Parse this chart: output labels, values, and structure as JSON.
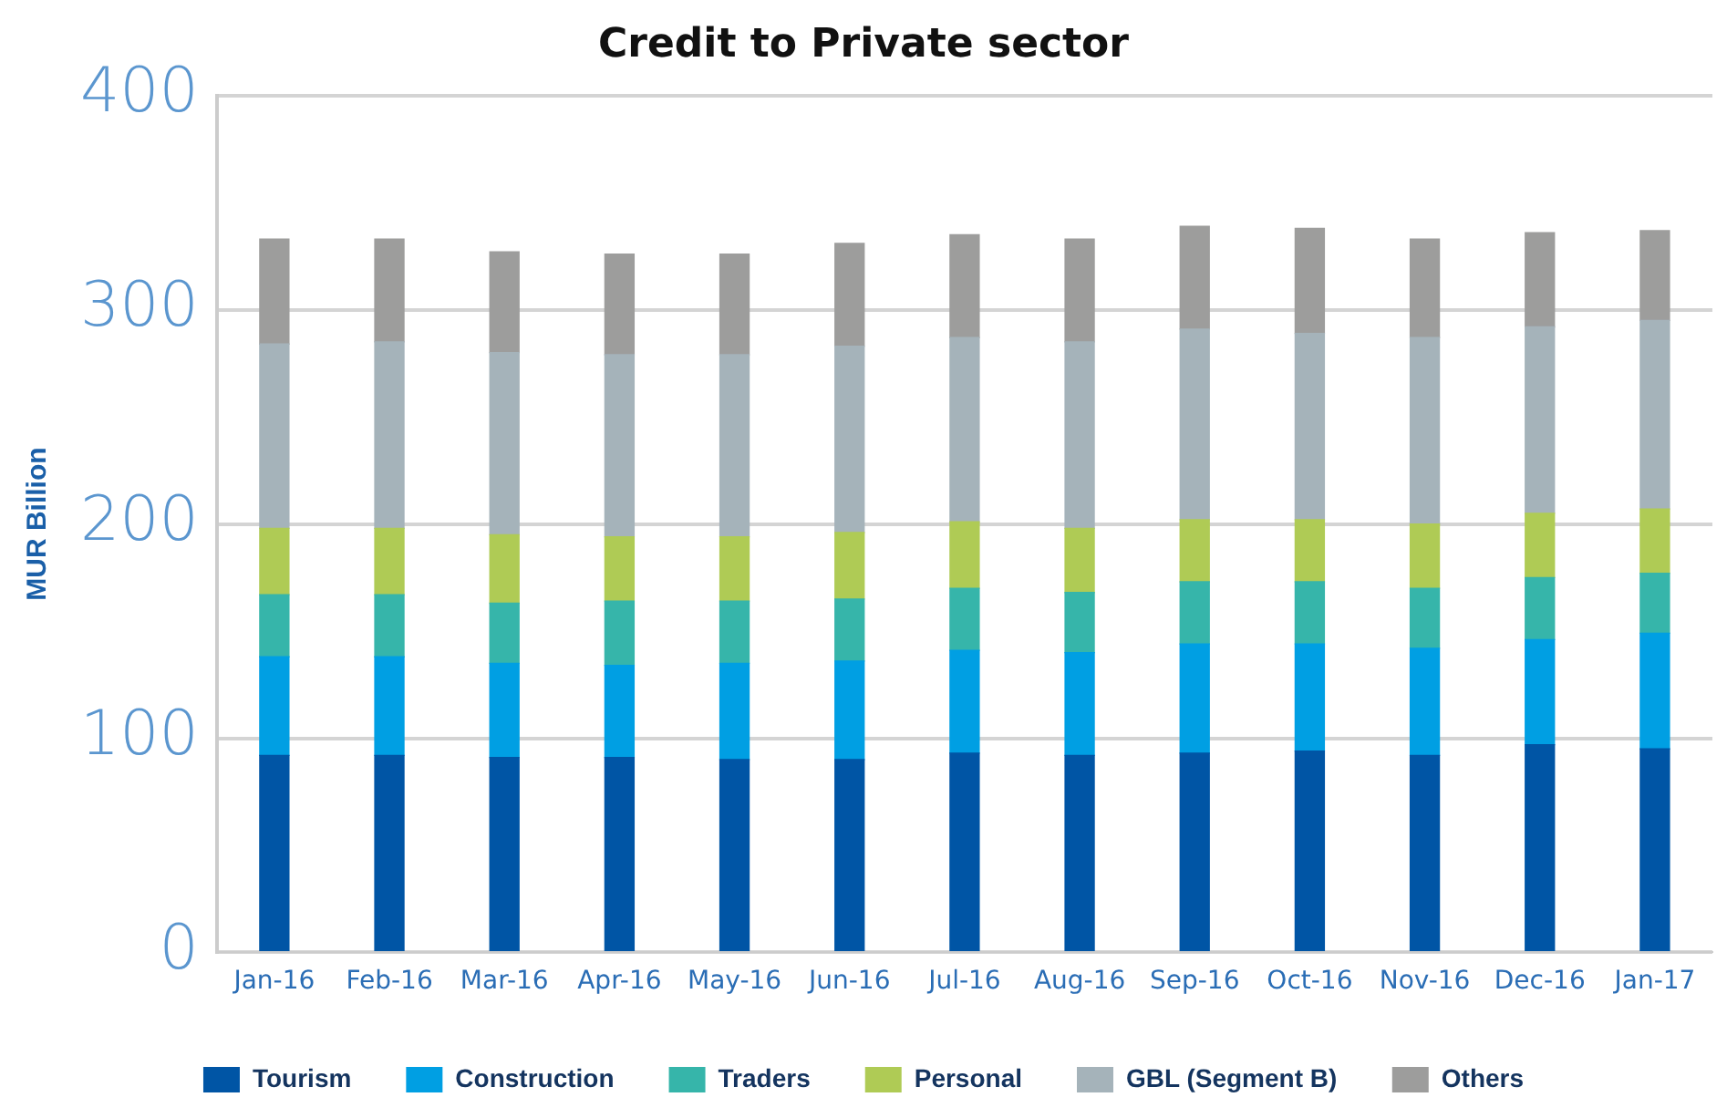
{
  "chart_data": {
    "type": "bar",
    "title": "Credit to Private sector",
    "ylabel": "MUR Billion",
    "categories": [
      "Jan-16",
      "Feb-16",
      "Mar-16",
      "Apr-16",
      "May-16",
      "Jun-16",
      "Jul-16",
      "Aug-16",
      "Sep-16",
      "Oct-16",
      "Nov-16",
      "Dec-16",
      "Jan-17"
    ],
    "stacked": true,
    "ylim": [
      0,
      400
    ],
    "yticks": [
      0,
      100,
      200,
      300,
      400
    ],
    "grid": "y",
    "legend": "bottom",
    "series": [
      {
        "name": "Tourism",
        "color": "#0055a5",
        "values": [
          92,
          92,
          91,
          91,
          90,
          90,
          93,
          92,
          93,
          94,
          92,
          97,
          95
        ]
      },
      {
        "name": "Construction",
        "color": "#009fe3",
        "values": [
          46,
          46,
          44,
          43,
          45,
          46,
          48,
          48,
          51,
          50,
          50,
          49,
          54
        ]
      },
      {
        "name": "Traders",
        "color": "#36b5aa",
        "values": [
          29,
          29,
          28,
          30,
          29,
          29,
          29,
          28,
          29,
          29,
          28,
          29,
          28
        ]
      },
      {
        "name": "Personal",
        "color": "#afcb55",
        "values": [
          31,
          31,
          32,
          30,
          30,
          31,
          31,
          30,
          29,
          29,
          30,
          30,
          30
        ]
      },
      {
        "name": "GBL (Segment B)",
        "color": "#a5b3ba",
        "values": [
          86,
          87,
          85,
          85,
          85,
          87,
          86,
          87,
          89,
          87,
          87,
          87,
          88
        ]
      },
      {
        "name": "Others",
        "color": "#9d9d9c",
        "values": [
          49,
          48,
          47,
          47,
          47,
          48,
          48,
          48,
          48,
          49,
          46,
          44,
          42
        ]
      }
    ]
  }
}
